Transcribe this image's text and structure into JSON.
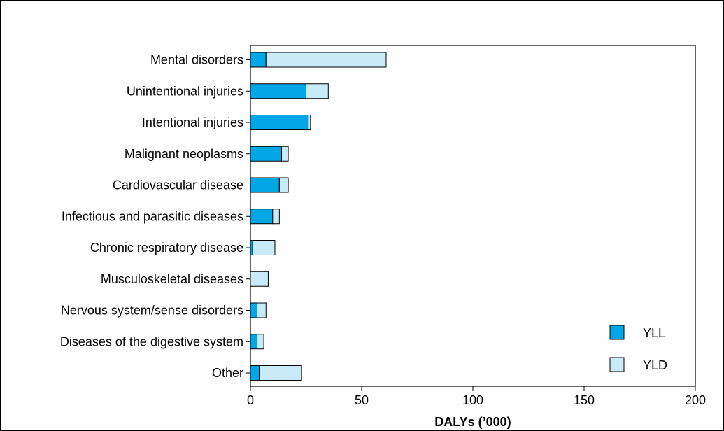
{
  "chart_data": {
    "type": "bar",
    "orientation": "horizontal",
    "stacked": true,
    "categories": [
      "Mental disorders",
      "Unintentional injuries",
      "Intentional injuries",
      "Malignant neoplasms",
      "Cardiovascular disease",
      "Infectious and parasitic diseases",
      "Chronic respiratory disease",
      "Musculoskeletal diseases",
      "Nervous system/sense disorders",
      "Diseases of the digestive system",
      "Other"
    ],
    "series": [
      {
        "name": "YLL",
        "color": "#00a6e6",
        "values": [
          7,
          25,
          26,
          14,
          13,
          10,
          1,
          0,
          3,
          3,
          4
        ]
      },
      {
        "name": "YLD",
        "color": "#c9ebf8",
        "values": [
          54,
          10,
          1,
          3,
          4,
          3,
          10,
          8,
          4,
          3,
          19
        ]
      }
    ],
    "xlabel": "DALYs (’000)",
    "ylabel": "",
    "xlim": [
      0,
      200
    ],
    "xticks": [
      0,
      50,
      100,
      150,
      200
    ],
    "grid": false,
    "legend_position": "bottom-right"
  }
}
